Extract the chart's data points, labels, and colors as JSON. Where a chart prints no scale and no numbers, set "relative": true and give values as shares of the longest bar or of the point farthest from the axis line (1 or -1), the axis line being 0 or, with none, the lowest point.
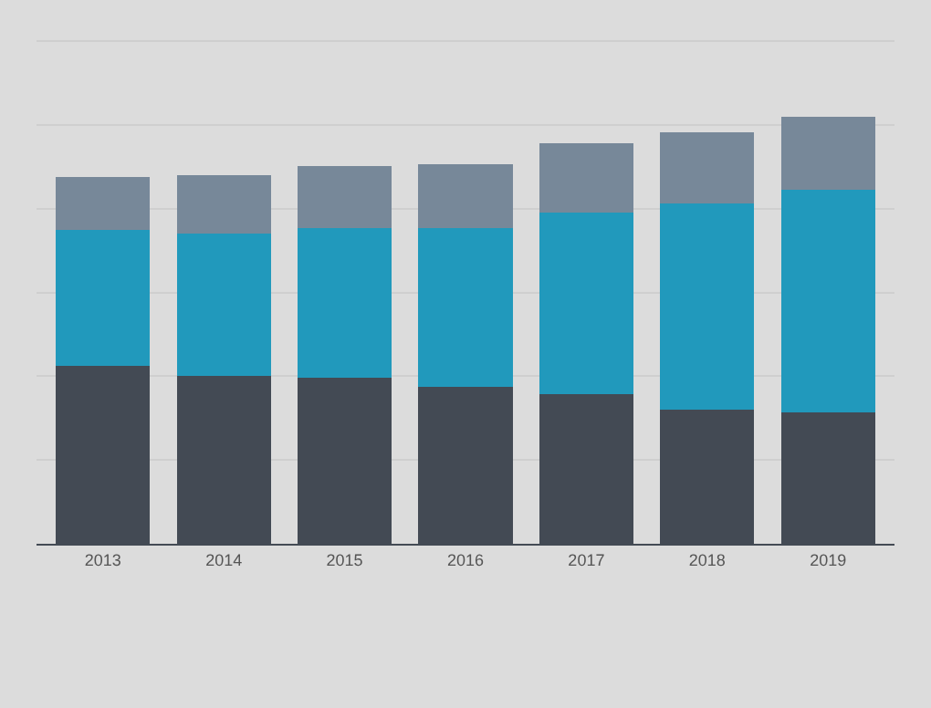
{
  "chart_data": {
    "type": "bar",
    "stacked": true,
    "relative": true,
    "grid": "y",
    "categories": [
      "2013",
      "2014",
      "2015",
      "2016",
      "2017",
      "2018",
      "2019"
    ],
    "series": [
      {
        "color": "#434a54",
        "values": [
          0.417,
          0.392,
          0.388,
          0.367,
          0.35,
          0.313,
          0.308
        ]
      },
      {
        "color": "#2199bc",
        "values": [
          0.317,
          0.333,
          0.35,
          0.371,
          0.425,
          0.483,
          0.521
        ]
      },
      {
        "color": "#778899",
        "values": [
          0.125,
          0.138,
          0.146,
          0.15,
          0.163,
          0.167,
          0.171
        ]
      }
    ]
  }
}
